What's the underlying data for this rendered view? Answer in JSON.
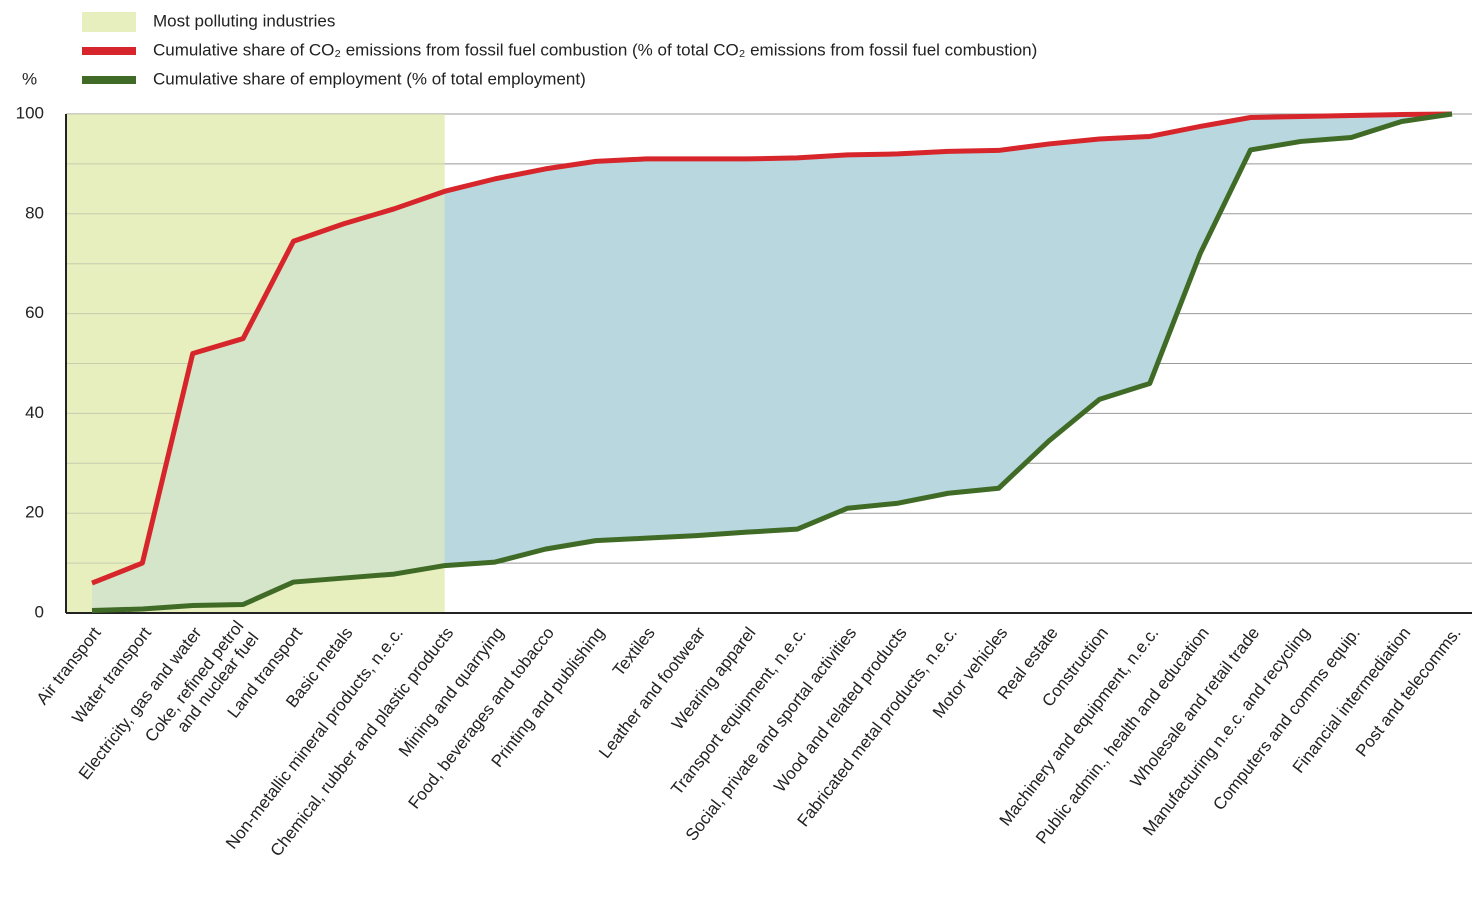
{
  "chart_data": {
    "type": "line",
    "y_label": "%",
    "highlight": {
      "name": "Most polluting industries",
      "color": "#e6efbd",
      "to_category": 7
    },
    "area_color": "#b8d7df",
    "categories": [
      "Air transport",
      "Water transport",
      "Electricity, gas and water",
      [
        "Coke, refined petrol",
        "and nuclear fuel"
      ],
      "Land transport",
      "Basic metals",
      "Non-metallic mineral products, n.e.c.",
      "Chemical, rubber and plastic products",
      "Mining and quarrying",
      "Food, beverages and tobacco",
      "Printing and publishing",
      "Textiles",
      "Leather and footwear",
      "Wearing apparel",
      "Transport equipment, n.e.c.",
      "Social, private and sportal activities",
      "Wood and related products",
      "Fabricated metal products, n.e.c.",
      "Motor vehicles",
      "Real estate",
      "Construction",
      "Machinery and equipment, n.e.c.",
      "Public admin., health and education",
      "Wholesale and retail trade",
      "Manufacturing n.e.c. and recycling",
      "Computers and comms equip.",
      "Financial intermediation",
      "Post and telecomms."
    ],
    "series": [
      {
        "name": "Cumulative share of CO₂ emissions from fossil fuel combustion (% of total CO₂ emissions from fossil fuel combustion)",
        "color": "#d7262b",
        "values": [
          6,
          10,
          52,
          55,
          74.5,
          78,
          81,
          84.5,
          87,
          89,
          90.5,
          91,
          91,
          91,
          91.2,
          91.8,
          92,
          92.5,
          92.7,
          94,
          95,
          95.5,
          97.5,
          99.3,
          99.5,
          99.7,
          99.9,
          100
        ]
      },
      {
        "name": "Cumulative share of employment (% of total employment)",
        "color": "#3f6b26",
        "values": [
          0.5,
          0.8,
          1.5,
          1.7,
          6.2,
          7,
          7.8,
          9.5,
          10.2,
          12.8,
          14.5,
          15,
          15.5,
          16.2,
          16.8,
          21,
          22,
          24,
          25,
          34.5,
          42.8,
          46,
          72,
          92.8,
          94.5,
          95.3,
          98.5,
          100
        ]
      }
    ],
    "ylim": [
      0,
      100
    ],
    "yticks": [
      0,
      20,
      40,
      60,
      80,
      100
    ],
    "grid_lines": [
      10,
      30,
      50,
      70,
      90
    ],
    "grid": true
  }
}
